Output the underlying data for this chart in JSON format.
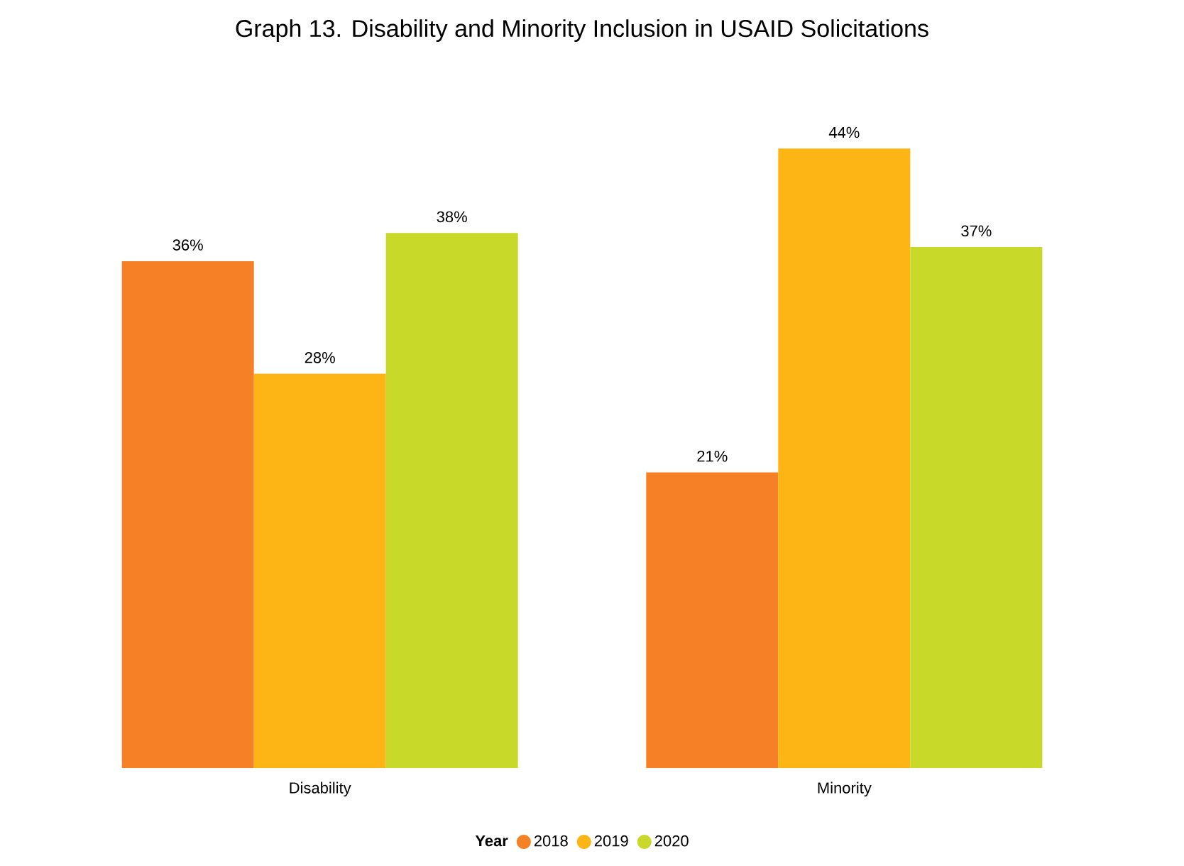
{
  "chart_data": {
    "type": "bar",
    "title": "Graph 13. Disability and Minority Inclusion in USAID Solicitations",
    "categories": [
      "Disability",
      "Minority"
    ],
    "legend_title": "Year",
    "legend": "bottom",
    "series": [
      {
        "name": "2018",
        "color": "#f58025",
        "values": [
          36,
          21
        ],
        "value_labels": [
          "36%",
          "21%"
        ]
      },
      {
        "name": "2019",
        "color": "#fdb515",
        "values": [
          28,
          44
        ],
        "value_labels": [
          "28%",
          "44%"
        ]
      },
      {
        "name": "2020",
        "color": "#c8d92a",
        "values": [
          38,
          37
        ],
        "value_labels": [
          "38%",
          "37%"
        ]
      }
    ]
  }
}
